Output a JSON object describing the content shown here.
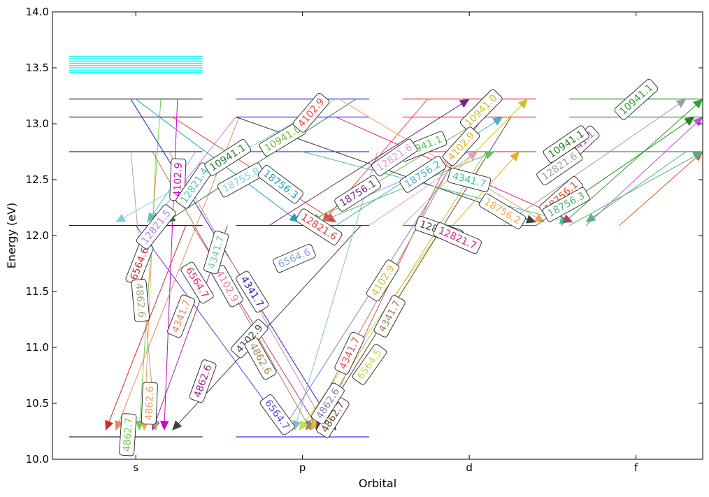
{
  "chart_data": {
    "type": "line",
    "title": "",
    "xlabel": "Orbital",
    "ylabel": "Energy (eV)",
    "xlim": [
      -0.5,
      3.4
    ],
    "ylim": [
      10.0,
      14.0
    ],
    "categories": [
      "s",
      "p",
      "d",
      "f"
    ],
    "yticks": [
      "10.0",
      "10.5",
      "11.0",
      "11.5",
      "12.0",
      "12.5",
      "13.0",
      "13.5",
      "14.0"
    ],
    "grid": false,
    "legend": "none",
    "level_span": 0.4,
    "levels": [
      {
        "orbital": "s",
        "energies": [
          10.2,
          12.09,
          12.75,
          13.06,
          13.22
        ],
        "color": "#000000"
      },
      {
        "orbital": "p",
        "energies": [
          10.2,
          12.09,
          12.75,
          13.06,
          13.22
        ],
        "color": "#0000ff"
      },
      {
        "orbital": "d",
        "energies": [
          12.09,
          12.75,
          13.06,
          13.22
        ],
        "color": "#ff0000"
      },
      {
        "orbital": "f",
        "energies": [
          12.75,
          13.06,
          13.22
        ],
        "color": "#008000"
      }
    ],
    "continuum": {
      "orbital": "s",
      "energies": [
        13.46,
        13.48,
        13.5,
        13.52,
        13.54,
        13.56,
        13.58,
        13.6
      ],
      "color": "#00ffff"
    },
    "transitions": [
      {
        "x1": 0.15,
        "y1": 13.22,
        "x2": 0.02,
        "y2": 10.26,
        "label": "4862.7",
        "color": "#6bd24a",
        "lx": -0.05,
        "ly": 10.22
      },
      {
        "x1": 0.12,
        "y1": 12.75,
        "x2": 0.05,
        "y2": 10.26,
        "label": "4862.6",
        "color": "#f4a259",
        "lx": 0.08,
        "ly": 10.5
      },
      {
        "x1": 0.3,
        "y1": 12.09,
        "x2": -0.18,
        "y2": 10.26,
        "label": "6564.6",
        "color": "#d62728",
        "lx": 0.02,
        "ly": 11.75
      },
      {
        "x1": 0.55,
        "y1": 12.09,
        "x2": 0.1,
        "y2": 10.26,
        "label": "4862.6",
        "color": "#a020a0",
        "lx": 0.4,
        "ly": 10.7
      },
      {
        "x1": 0.25,
        "y1": 13.22,
        "x2": 0.17,
        "y2": 10.26,
        "label": "4102.9",
        "color": "#cc00cc",
        "lx": 0.25,
        "ly": 12.5
      },
      {
        "x1": 0.62,
        "y1": 13.06,
        "x2": -0.12,
        "y2": 10.26,
        "label": "4341.7",
        "color": "#e58a62",
        "lx": 0.27,
        "ly": 11.28
      },
      {
        "x1": -0.03,
        "y1": 12.75,
        "x2": 0.12,
        "y2": 10.26,
        "label": "4862.6",
        "color": "#b0a080",
        "lx": 0.03,
        "ly": 11.42
      },
      {
        "x1": 1.35,
        "y1": 12.09,
        "x2": 0.22,
        "y2": 10.26,
        "label": "4102.9",
        "color": "#404040",
        "lx": 0.68,
        "ly": 11.08
      },
      {
        "x1": 0.36,
        "y1": 12.75,
        "x2": 0.07,
        "y2": 12.12,
        "label": "12821.4",
        "color": "#58c4b0",
        "lx": 0.35,
        "ly": 12.45
      },
      {
        "x1": 0.6,
        "y1": 13.06,
        "x2": 0.1,
        "y2": 12.12,
        "label": "12821.5",
        "color": "#c080e0",
        "lx": 0.12,
        "ly": 12.08
      },
      {
        "x1": 1.2,
        "y1": 13.22,
        "x2": -0.12,
        "y2": 12.12,
        "label": "18755.8",
        "color": "#80d0e0",
        "lx": 0.63,
        "ly": 12.5
      },
      {
        "x1": 1.32,
        "y1": 13.22,
        "x2": 0.18,
        "y2": 12.12,
        "label": "10941.1",
        "color": "#2e7d32",
        "lx": 0.55,
        "ly": 12.7
      },
      {
        "x1": -0.03,
        "y1": 13.22,
        "x2": 1.2,
        "y2": 10.26,
        "label": "4341.7",
        "color": "#2020c0",
        "lx": 0.7,
        "ly": 11.5
      },
      {
        "x1": 0.0,
        "y1": 12.09,
        "x2": 0.9,
        "y2": 10.26,
        "label": "6564.7",
        "color": "#6040e0",
        "lx": 0.85,
        "ly": 10.4
      },
      {
        "x1": 0.1,
        "y1": 12.75,
        "x2": 1.05,
        "y2": 10.26,
        "label": "4862.6",
        "color": "#a08050",
        "lx": 0.75,
        "ly": 10.9
      },
      {
        "x1": 0.2,
        "y1": 12.75,
        "x2": 1.15,
        "y2": 10.26,
        "label": "4102.9",
        "color": "#e080a0",
        "lx": 0.55,
        "ly": 11.55
      },
      {
        "x1": 0.34,
        "y1": 12.09,
        "x2": 1.1,
        "y2": 10.26,
        "label": "6564.7",
        "color": "#d03070",
        "lx": 0.37,
        "ly": 11.58
      },
      {
        "x1": 1.45,
        "y1": 12.75,
        "x2": 0.95,
        "y2": 10.26,
        "label": "4341.7",
        "color": "#80c0c0",
        "lx": 0.48,
        "ly": 11.85
      },
      {
        "x1": 1.9,
        "y1": 12.75,
        "x2": 1.1,
        "y2": 10.26,
        "label": "4341.7",
        "color": "#e05050",
        "lx": 1.28,
        "ly": 10.95
      },
      {
        "x1": 2.05,
        "y1": 13.06,
        "x2": 1.02,
        "y2": 10.26,
        "label": "4341.7",
        "color": "#a08060",
        "lx": 1.52,
        "ly": 11.28
      },
      {
        "x1": 1.85,
        "y1": 12.09,
        "x2": 0.98,
        "y2": 10.26,
        "label": "6564.5",
        "color": "#c0e040",
        "lx": 1.4,
        "ly": 10.85
      },
      {
        "x1": 2.1,
        "y1": 12.75,
        "x2": 1.05,
        "y2": 10.26,
        "label": "4102.9",
        "color": "#d0c040",
        "lx": 1.48,
        "ly": 11.6
      },
      {
        "x1": 2.25,
        "y1": 13.06,
        "x2": 1.08,
        "y2": 10.26,
        "label": "4862.7",
        "color": "#704030",
        "lx": 1.18,
        "ly": 10.38
      },
      {
        "x1": 2.15,
        "y1": 13.22,
        "x2": 0.88,
        "y2": 10.26,
        "label": "4862.6",
        "color": "#8080c0",
        "lx": 1.15,
        "ly": 10.5
      },
      {
        "x1": 0.22,
        "y1": 13.06,
        "x2": 1.2,
        "y2": 12.12,
        "label": "12821.6",
        "color": "#e04040",
        "lx": 1.1,
        "ly": 12.08
      },
      {
        "x1": 0.0,
        "y1": 13.22,
        "x2": 0.98,
        "y2": 12.12,
        "label": "18756.3",
        "color": "#20a0c0",
        "lx": 0.87,
        "ly": 12.46
      },
      {
        "x1": 2.0,
        "y1": 12.75,
        "x2": 1.02,
        "y2": 12.12,
        "label": "6564.6",
        "color": "#8aa0e0",
        "lx": 0.95,
        "ly": 11.8
      },
      {
        "x1": 2.1,
        "y1": 13.06,
        "x2": 1.05,
        "y2": 12.12,
        "label": "10941.0",
        "color": "#6cbf3c",
        "lx": 0.88,
        "ly": 12.87
      },
      {
        "x1": 1.75,
        "y1": 13.22,
        "x2": 1.12,
        "y2": 12.12,
        "label": "4102.9",
        "color": "#e64a4a",
        "lx": 1.05,
        "ly": 13.1
      },
      {
        "x1": 0.8,
        "y1": 12.09,
        "x2": 2.0,
        "y2": 13.22,
        "label": "18756.1",
        "color": "#6a2b80",
        "lx": 1.33,
        "ly": 12.38
      },
      {
        "x1": 1.05,
        "y1": 12.09,
        "x2": 2.15,
        "y2": 12.75,
        "label": "10941.1",
        "color": "#60c060",
        "lx": 1.72,
        "ly": 12.8
      },
      {
        "x1": 1.2,
        "y1": 12.09,
        "x2": 2.2,
        "y2": 13.06,
        "label": "18756.2",
        "color": "#4ab0d0",
        "lx": 1.72,
        "ly": 12.55
      },
      {
        "x1": 1.4,
        "y1": 12.09,
        "x2": 2.05,
        "y2": 12.75,
        "label": "12821.6",
        "color": "#e0a0d0",
        "lx": 1.55,
        "ly": 12.7
      },
      {
        "x1": 0.6,
        "y1": 13.06,
        "x2": 2.4,
        "y2": 12.12,
        "label": "12821.7",
        "color": "#404040",
        "lx": 1.82,
        "ly": 12.05
      },
      {
        "x1": 1.0,
        "y1": 12.75,
        "x2": 2.6,
        "y2": 12.12,
        "label": "4341.7",
        "color": "#40c0a0",
        "lx": 2.0,
        "ly": 12.5
      },
      {
        "x1": 1.2,
        "y1": 13.06,
        "x2": 2.62,
        "y2": 12.12,
        "label": "12821.7",
        "color": "#e0207a",
        "lx": 1.93,
        "ly": 11.98
      },
      {
        "x1": 1.6,
        "y1": 12.09,
        "x2": 2.35,
        "y2": 13.22,
        "label": "10941.0",
        "color": "#c8c030",
        "lx": 2.07,
        "ly": 13.12
      },
      {
        "x1": 1.9,
        "y1": 12.09,
        "x2": 2.3,
        "y2": 12.75,
        "label": "4102.9",
        "color": "#e0b020",
        "lx": 1.95,
        "ly": 12.8
      },
      {
        "x1": 1.22,
        "y1": 13.22,
        "x2": 2.45,
        "y2": 12.12,
        "label": "18756.2",
        "color": "#f4a259",
        "lx": 2.2,
        "ly": 12.22
      },
      {
        "x1": 2.55,
        "y1": 12.09,
        "x2": 3.4,
        "y2": 13.22,
        "label": "10941.1",
        "color": "#2ca02c",
        "lx": 3.0,
        "ly": 13.22
      },
      {
        "x1": 2.7,
        "y1": 12.09,
        "x2": 3.4,
        "y2": 13.06,
        "label": "10941.1",
        "color": "#c050e0",
        "lx": 2.65,
        "ly": 12.8
      },
      {
        "x1": 2.9,
        "y1": 12.09,
        "x2": 3.4,
        "y2": 12.75,
        "label": "18756.1",
        "color": "#e05020",
        "lx": 2.55,
        "ly": 12.35
      },
      {
        "x1": 2.6,
        "y1": 12.09,
        "x2": 3.4,
        "y2": 12.75,
        "label": "18756.3",
        "color": "#50b080",
        "lx": 2.58,
        "ly": 12.28
      },
      {
        "x1": 2.2,
        "y1": 12.09,
        "x2": 3.3,
        "y2": 13.22,
        "label": "12821.6",
        "color": "#a0a0a0",
        "lx": 2.54,
        "ly": 12.62
      },
      {
        "x1": 2.4,
        "y1": 12.09,
        "x2": 3.35,
        "y2": 13.06,
        "label": "10941.1",
        "color": "#208020",
        "lx": 2.58,
        "ly": 12.82
      },
      {
        "x1": 3.3,
        "y1": 12.75,
        "x2": 2.7,
        "y2": 12.12,
        "label": "",
        "color": "#60b080",
        "lx": null,
        "ly": null
      }
    ]
  }
}
